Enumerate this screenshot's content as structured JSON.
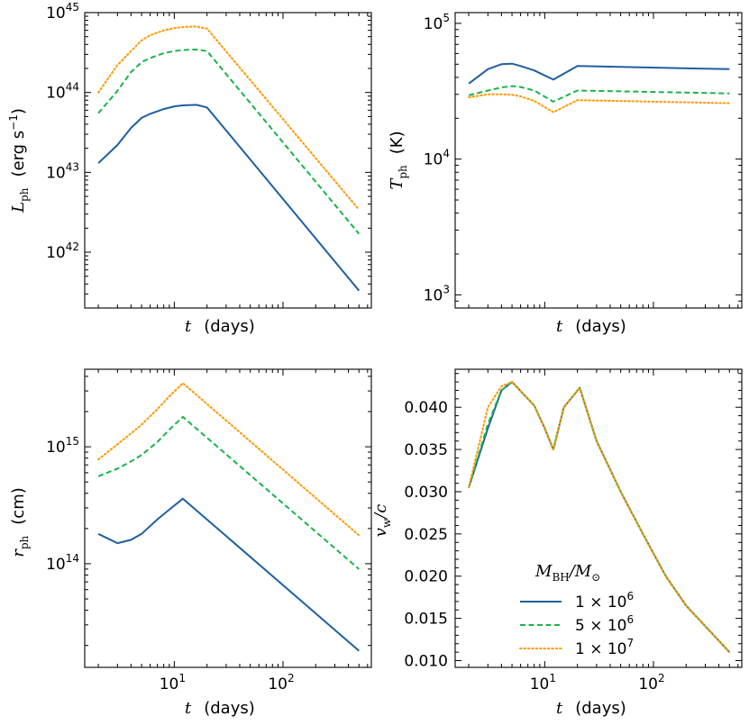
{
  "colors": {
    "s1": "#1f5fa0",
    "s2": "#19b34a",
    "s3": "#ff9800"
  },
  "legend": {
    "title": "M_BH/M_⊙",
    "entries": [
      "1 × 10^6",
      "5 × 10^6",
      "1 × 10^7"
    ]
  },
  "chart_data": [
    {
      "type": "line",
      "name": "luminosity",
      "xscale": "log",
      "yscale": "log",
      "xlabel": "t (days)",
      "ylabel": "L_ph (erg s^-1)",
      "xlim": [
        1.5,
        650
      ],
      "ylim": [
        2e+41,
        1e+45
      ],
      "yticks": [
        "10^42",
        "10^43",
        "10^44",
        "10^45"
      ],
      "xticks": [],
      "x": [
        2,
        3,
        4,
        5,
        6,
        8,
        10,
        12,
        16,
        20,
        500
      ],
      "series": [
        {
          "name": "1 × 10^6",
          "style": "solid",
          "values": [
            1.3e+43,
            2.2e+43,
            3.6e+43,
            4.8e+43,
            5.4e+43,
            6.2e+43,
            6.7e+43,
            6.9e+43,
            7e+43,
            6.5e+43,
            3.3e+41
          ]
        },
        {
          "name": "5 × 10^6",
          "style": "dashed",
          "values": [
            5.5e+43,
            1.05e+44,
            1.8e+44,
            2.4e+44,
            2.7e+44,
            3.1e+44,
            3.3e+44,
            3.4e+44,
            3.45e+44,
            3.3e+44,
            1.7e+42
          ]
        },
        {
          "name": "1 × 10^7",
          "style": "dotted",
          "values": [
            1e+44,
            2.2e+44,
            3.3e+44,
            4.5e+44,
            5.2e+44,
            6e+44,
            6.4e+44,
            6.6e+44,
            6.7e+44,
            6.3e+44,
            3.4e+42
          ]
        }
      ]
    },
    {
      "type": "line",
      "name": "temperature",
      "xscale": "log",
      "yscale": "log",
      "xlabel": "t (days)",
      "ylabel": "T_ph (K)",
      "xlim": [
        1.5,
        650
      ],
      "ylim": [
        800.0,
        120000.0
      ],
      "yticks": [
        "10^3",
        "10^4",
        "10^5"
      ],
      "xticks": [],
      "x": [
        2,
        3,
        4,
        5,
        6,
        8,
        12,
        20,
        500
      ],
      "series": [
        {
          "name": "1 × 10^6",
          "style": "solid",
          "values": [
            36000,
            46000,
            50000,
            50500,
            48500,
            45000,
            38500,
            48500,
            46000
          ]
        },
        {
          "name": "5 × 10^6",
          "style": "dashed",
          "values": [
            29500,
            32000,
            33700,
            34500,
            34000,
            32000,
            26500,
            32000,
            30500
          ]
        },
        {
          "name": "1 × 10^7",
          "style": "dotted",
          "values": [
            28500,
            30000,
            30000,
            29800,
            29000,
            26800,
            22200,
            27200,
            25800
          ]
        }
      ]
    },
    {
      "type": "line",
      "name": "radius",
      "xscale": "log",
      "yscale": "log",
      "xlabel": "t (days)",
      "ylabel": "r_ph (cm)",
      "xlim": [
        1.5,
        650
      ],
      "ylim": [
        13000000000000.0,
        4600000000000000.0
      ],
      "yticks": [
        "10^14",
        "10^15"
      ],
      "xticks": [
        "10^1",
        "10^2"
      ],
      "x": [
        2,
        3,
        4,
        5,
        7,
        9,
        12,
        500
      ],
      "series": [
        {
          "name": "1 × 10^6",
          "style": "solid",
          "values": [
            180000000000000.0,
            150000000000000.0,
            160000000000000.0,
            180000000000000.0,
            240000000000000.0,
            290000000000000.0,
            360000000000000.0,
            18000000000000.0
          ]
        },
        {
          "name": "5 × 10^6",
          "style": "dashed",
          "values": [
            560000000000000.0,
            650000000000000.0,
            750000000000000.0,
            850000000000000.0,
            1100000000000000.0,
            1400000000000000.0,
            1800000000000000.0,
            90000000000000.0
          ]
        },
        {
          "name": "1 × 10^7",
          "style": "dotted",
          "values": [
            780000000000000.0,
            1050000000000000.0,
            1300000000000000.0,
            1550000000000000.0,
            2100000000000000.0,
            2700000000000000.0,
            3500000000000000.0,
            175000000000000.0
          ]
        }
      ]
    },
    {
      "type": "line",
      "name": "wind-velocity",
      "xscale": "log",
      "yscale": "linear",
      "xlabel": "t (days)",
      "ylabel": "v_w/c",
      "xlim": [
        1.5,
        650
      ],
      "ylim": [
        0.0092,
        0.0445
      ],
      "yticks": [
        "0.010",
        "0.015",
        "0.020",
        "0.025",
        "0.030",
        "0.035",
        "0.040"
      ],
      "xticks": [
        "10^1",
        "10^2"
      ],
      "x": [
        2,
        3,
        4,
        5,
        8,
        10,
        12,
        15,
        21,
        30,
        50,
        80,
        130,
        200,
        500
      ],
      "series": [
        {
          "name": "1 × 10^6",
          "style": "solid",
          "values": [
            0.0305,
            0.0375,
            0.042,
            0.043,
            0.0402,
            0.0375,
            0.035,
            0.04,
            0.0423,
            0.036,
            0.03,
            0.025,
            0.02,
            0.0165,
            0.011
          ]
        },
        {
          "name": "5 × 10^6",
          "style": "dashed",
          "values": [
            0.0305,
            0.038,
            0.042,
            0.043,
            0.0402,
            0.0375,
            0.035,
            0.04,
            0.0423,
            0.036,
            0.03,
            0.025,
            0.02,
            0.0165,
            0.011
          ]
        },
        {
          "name": "1 × 10^7",
          "style": "dotted",
          "values": [
            0.0305,
            0.04,
            0.0425,
            0.043,
            0.0402,
            0.0375,
            0.035,
            0.04,
            0.0423,
            0.036,
            0.03,
            0.025,
            0.02,
            0.0165,
            0.011
          ]
        }
      ]
    }
  ]
}
